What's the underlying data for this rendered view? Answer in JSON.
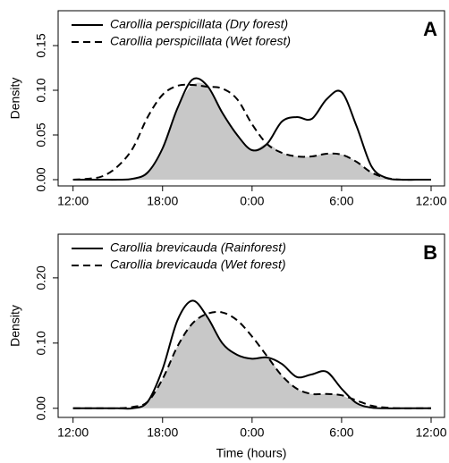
{
  "chart_data": [
    {
      "type": "line",
      "panel_label": "A",
      "ylabel": "Density",
      "x": [
        12,
        13,
        14,
        15,
        16,
        17,
        18,
        19,
        20,
        21,
        22,
        23,
        24,
        25,
        26,
        27,
        28,
        29,
        30,
        31,
        32,
        33,
        34,
        35,
        36
      ],
      "series": [
        {
          "name": "Carollia perspicillata (Dry forest)",
          "color": "#000000",
          "linestyle": "solid",
          "values": [
            0,
            0,
            0,
            0,
            0.001,
            0.008,
            0.035,
            0.08,
            0.112,
            0.105,
            0.075,
            0.05,
            0.033,
            0.04,
            0.065,
            0.07,
            0.068,
            0.09,
            0.098,
            0.06,
            0.015,
            0.002,
            0,
            0,
            0
          ]
        },
        {
          "name": "Carollia perspicillata (Wet forest)",
          "color": "#000000",
          "linestyle": "dashed",
          "values": [
            0,
            0.001,
            0.004,
            0.015,
            0.035,
            0.07,
            0.095,
            0.105,
            0.106,
            0.104,
            0.102,
            0.09,
            0.062,
            0.04,
            0.03,
            0.026,
            0.026,
            0.029,
            0.028,
            0.02,
            0.008,
            0.002,
            0,
            0,
            0
          ]
        }
      ],
      "overlap_fill": "#c8c8c8",
      "xlim": [
        11,
        36.9
      ],
      "xticks": [
        {
          "value": 12,
          "label": "12:00"
        },
        {
          "value": 18,
          "label": "18:00"
        },
        {
          "value": 24,
          "label": "0:00"
        },
        {
          "value": 30,
          "label": "6:00"
        },
        {
          "value": 36,
          "label": "12:00"
        }
      ],
      "ylim": [
        -0.007,
        0.189
      ],
      "yticks": [
        {
          "value": 0,
          "label": "0.00"
        },
        {
          "value": 0.05,
          "label": "0.05"
        },
        {
          "value": 0.1,
          "label": "0.10"
        },
        {
          "value": 0.15,
          "label": "0.15"
        }
      ],
      "legend": "top-left",
      "grid": false
    },
    {
      "type": "line",
      "panel_label": "B",
      "ylabel": "Density",
      "xlabel": "Time (hours)",
      "x": [
        12,
        13,
        14,
        15,
        16,
        17,
        18,
        19,
        20,
        21,
        22,
        23,
        24,
        25,
        26,
        27,
        28,
        29,
        30,
        31,
        32,
        33,
        34,
        35,
        36
      ],
      "series": [
        {
          "name": "Carollia brevicauda (Rainforest)",
          "color": "#000000",
          "linestyle": "solid",
          "values": [
            0,
            0,
            0,
            0,
            0,
            0.01,
            0.06,
            0.135,
            0.165,
            0.14,
            0.1,
            0.082,
            0.076,
            0.078,
            0.068,
            0.048,
            0.052,
            0.056,
            0.03,
            0.008,
            0.001,
            0,
            0,
            0,
            0
          ]
        },
        {
          "name": "Carollia brevicauda (Wet forest)",
          "color": "#000000",
          "linestyle": "dashed",
          "values": [
            0,
            0,
            0,
            0,
            0.002,
            0.01,
            0.045,
            0.095,
            0.13,
            0.145,
            0.147,
            0.135,
            0.11,
            0.08,
            0.05,
            0.03,
            0.022,
            0.022,
            0.02,
            0.012,
            0.004,
            0.001,
            0,
            0,
            0
          ]
        }
      ],
      "overlap_fill": "#c8c8c8",
      "xlim": [
        11,
        36.9
      ],
      "xticks": [
        {
          "value": 12,
          "label": "12:00"
        },
        {
          "value": 18,
          "label": "18:00"
        },
        {
          "value": 24,
          "label": "0:00"
        },
        {
          "value": 30,
          "label": "6:00"
        },
        {
          "value": 36,
          "label": "12:00"
        }
      ],
      "ylim": [
        -0.014,
        0.267
      ],
      "yticks": [
        {
          "value": 0,
          "label": "0.00"
        },
        {
          "value": 0.1,
          "label": "0.10"
        },
        {
          "value": 0.2,
          "label": "0.20"
        }
      ],
      "legend": "top-left",
      "grid": false
    }
  ]
}
